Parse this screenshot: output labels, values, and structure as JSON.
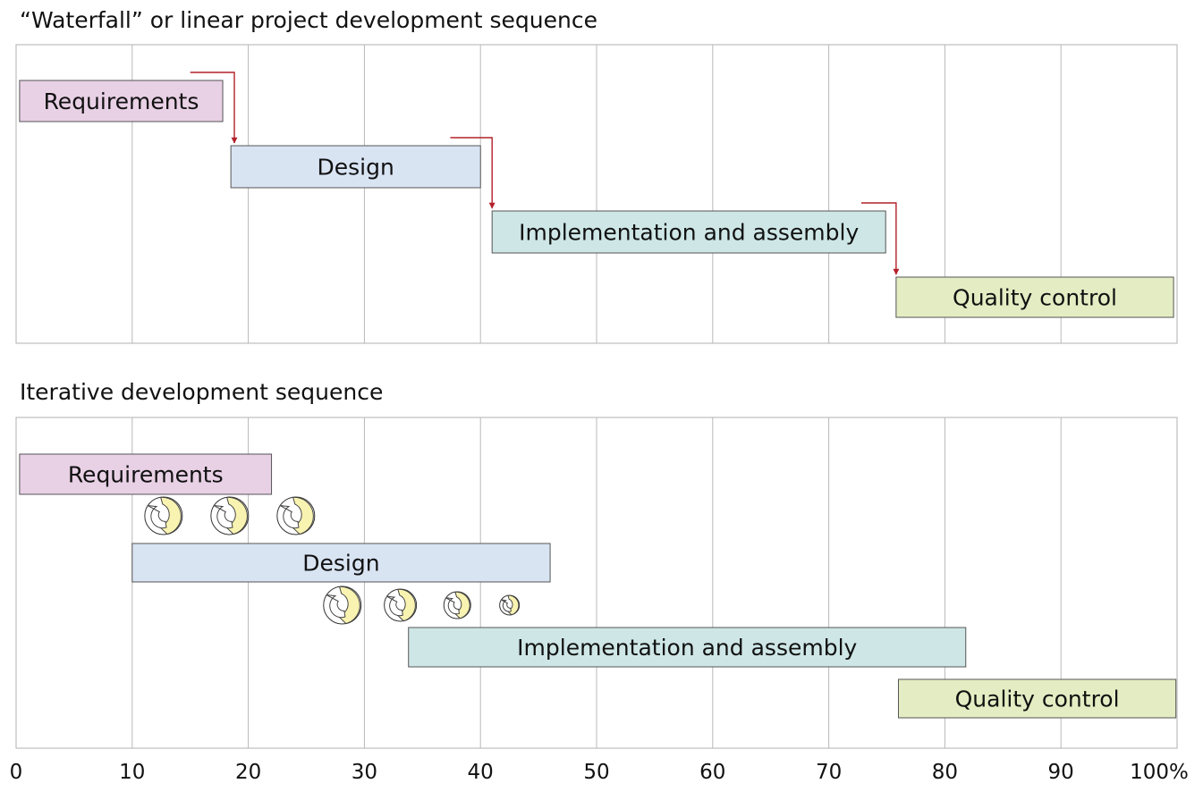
{
  "chart_data": [
    {
      "type": "gantt",
      "title": "“Waterfall” or linear project development sequence",
      "x_unit": "% of project",
      "xlim": [
        0,
        100
      ],
      "tasks": [
        {
          "label": "Requirements",
          "start": 0.3,
          "end": 17.8,
          "color": "#e8d0e5"
        },
        {
          "label": "Design",
          "start": 18.5,
          "end": 40,
          "color": "#d9e4f3"
        },
        {
          "label": "Implementation and assembly",
          "start": 41,
          "end": 74.9,
          "color": "#cee6e6"
        },
        {
          "label": "Quality control",
          "start": 75.8,
          "end": 99.7,
          "color": "#e4ecc3"
        }
      ],
      "handoffs": [
        {
          "from": 0,
          "to": 1,
          "start_x": 15,
          "corner_x": 18.8
        },
        {
          "from": 1,
          "to": 2,
          "start_x": 37.4,
          "corner_x": 41
        },
        {
          "from": 2,
          "to": 3,
          "start_x": 72.8,
          "corner_x": 75.8
        }
      ]
    },
    {
      "type": "gantt",
      "title": "Iterative development sequence",
      "x_unit": "% of project",
      "xlim": [
        0,
        100
      ],
      "tasks": [
        {
          "label": "Requirements",
          "start": 0.3,
          "end": 22,
          "color": "#e8d0e5"
        },
        {
          "label": "Design",
          "start": 10,
          "end": 46,
          "color": "#d9e4f3"
        },
        {
          "label": "Implementation and assembly",
          "start": 33.8,
          "end": 81.8,
          "color": "#cee6e6"
        },
        {
          "label": "Quality control",
          "start": 76,
          "end": 99.9,
          "color": "#e4ecc3"
        }
      ],
      "iterations": [
        {
          "between": [
            0,
            1
          ],
          "x": 12.7,
          "size": "large"
        },
        {
          "between": [
            0,
            1
          ],
          "x": 18.4,
          "size": "large"
        },
        {
          "between": [
            0,
            1
          ],
          "x": 24.1,
          "size": "large"
        },
        {
          "between": [
            1,
            2
          ],
          "x": 28.1,
          "size": "large"
        },
        {
          "between": [
            1,
            2
          ],
          "x": 33.1,
          "size": "medium"
        },
        {
          "between": [
            1,
            2
          ],
          "x": 38,
          "size": "small"
        },
        {
          "between": [
            1,
            2
          ],
          "x": 42.5,
          "size": "tiny"
        }
      ]
    }
  ],
  "x_axis": {
    "ticks": [
      0,
      10,
      20,
      30,
      40,
      50,
      60,
      70,
      80,
      90,
      100
    ],
    "tick_labels": [
      "0",
      "10",
      "20",
      "30",
      "40",
      "50",
      "60",
      "70",
      "80",
      "90",
      "100%"
    ]
  },
  "colors": {
    "grid": "#b8b8b8",
    "frame": "#b0b0b0",
    "bar_border": "#555555",
    "handoff_arrow": "#b3202a",
    "iteration_arrow_fill": "#f8f3b0",
    "iteration_ring_fill": "#ffffff"
  }
}
